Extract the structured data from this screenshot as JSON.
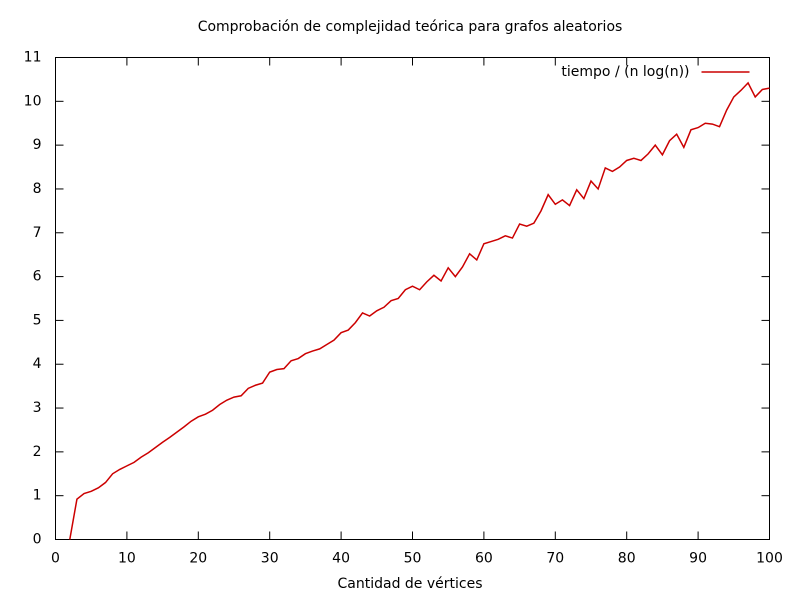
{
  "chart_data": {
    "type": "line",
    "title": "Comprobación de complejidad teórica para grafos aleatorios",
    "x_label": "Cantidad de vértices",
    "x": [
      2,
      3,
      4,
      5,
      6,
      7,
      8,
      9,
      10,
      11,
      12,
      13,
      14,
      15,
      16,
      17,
      18,
      19,
      20,
      21,
      22,
      23,
      24,
      25,
      26,
      27,
      28,
      29,
      30,
      31,
      32,
      33,
      34,
      35,
      36,
      37,
      38,
      39,
      40,
      41,
      42,
      43,
      44,
      45,
      46,
      47,
      48,
      49,
      50,
      51,
      52,
      53,
      54,
      55,
      56,
      57,
      58,
      59,
      60,
      61,
      62,
      63,
      64,
      65,
      66,
      67,
      68,
      69,
      70,
      71,
      72,
      73,
      74,
      75,
      76,
      77,
      78,
      79,
      80,
      81,
      82,
      83,
      84,
      85,
      86,
      87,
      88,
      89,
      90,
      91,
      92,
      93,
      94,
      95,
      96,
      97,
      98,
      99,
      100
    ],
    "series": [
      {
        "name": "tiempo / (n log(n))",
        "color": "#cc0000",
        "values": [
          0,
          0.92,
          1.05,
          1.1,
          1.18,
          1.3,
          1.5,
          1.6,
          1.68,
          1.76,
          1.88,
          1.98,
          2.1,
          2.22,
          2.33,
          2.45,
          2.57,
          2.7,
          2.8,
          2.86,
          2.95,
          3.08,
          3.18,
          3.25,
          3.28,
          3.45,
          3.52,
          3.57,
          3.82,
          3.88,
          3.9,
          4.08,
          4.13,
          4.24,
          4.3,
          4.35,
          4.45,
          4.55,
          4.72,
          4.78,
          4.95,
          5.17,
          5.1,
          5.22,
          5.3,
          5.45,
          5.5,
          5.7,
          5.78,
          5.7,
          5.88,
          6.03,
          5.9,
          6.2,
          6.0,
          6.22,
          6.52,
          6.38,
          6.75,
          6.8,
          6.85,
          6.93,
          6.88,
          7.2,
          7.15,
          7.22,
          7.5,
          7.87,
          7.65,
          7.75,
          7.62,
          7.98,
          7.78,
          8.18,
          8.0,
          8.48,
          8.4,
          8.5,
          8.65,
          8.7,
          8.65,
          8.8,
          9.0,
          8.78,
          9.1,
          9.25,
          8.95,
          9.35,
          9.4,
          9.5,
          9.48,
          9.42,
          9.8,
          10.1,
          10.25,
          10.42,
          10.1,
          10.27,
          10.3
        ]
      }
    ],
    "xlim": [
      0,
      100
    ],
    "xticks": [
      0,
      10,
      20,
      30,
      40,
      50,
      60,
      70,
      80,
      90,
      100
    ],
    "ylim": [
      0,
      11
    ],
    "yticks": [
      0,
      1,
      2,
      3,
      4,
      5,
      6,
      7,
      8,
      9,
      10,
      11
    ],
    "grid": false,
    "legend": "top-right"
  }
}
